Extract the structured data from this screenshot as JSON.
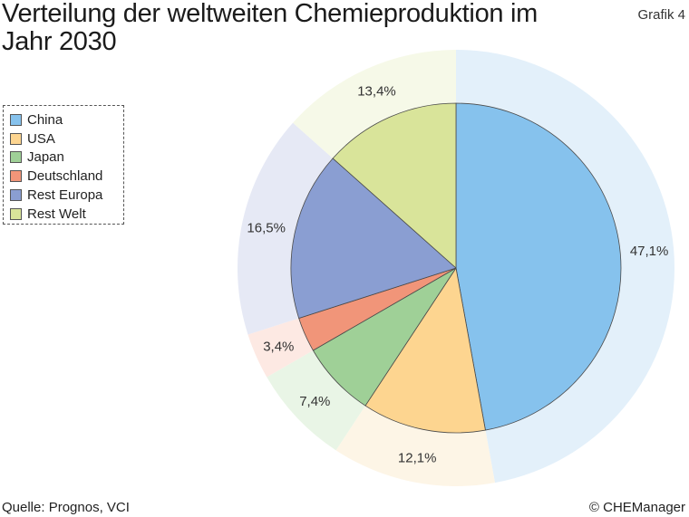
{
  "header": {
    "title": "Verteilung der weltweiten Chemieproduktion im Jahr 2030",
    "figure_tag": "Grafik 4"
  },
  "footer": {
    "source": "Quelle: Prognos, VCI",
    "copyright": "© CHEManager"
  },
  "chart_data": {
    "type": "pie",
    "title": "Verteilung der weltweiten Chemieproduktion im Jahr 2030",
    "legend_position": "left",
    "slices": [
      {
        "label": "China",
        "value": 47.1,
        "display": "47,1%",
        "color": "#86c2ed",
        "halo": "#e3f0fa"
      },
      {
        "label": "USA",
        "value": 12.1,
        "display": "12,1%",
        "color": "#fdd590",
        "halo": "#fdf5e6"
      },
      {
        "label": "Japan",
        "value": 7.4,
        "display": "7,4%",
        "color": "#9fd097",
        "halo": "#e9f5e6"
      },
      {
        "label": "Deutschland",
        "value": 3.4,
        "display": "3,4%",
        "color": "#f19579",
        "halo": "#fde9e3"
      },
      {
        "label": "Rest Europa",
        "value": 16.5,
        "display": "16,5%",
        "color": "#8a9ed2",
        "halo": "#e6e9f5"
      },
      {
        "label": "Rest Welt",
        "value": 13.4,
        "display": "13,4%",
        "color": "#d9e49a",
        "halo": "#f6f9e8"
      }
    ]
  }
}
